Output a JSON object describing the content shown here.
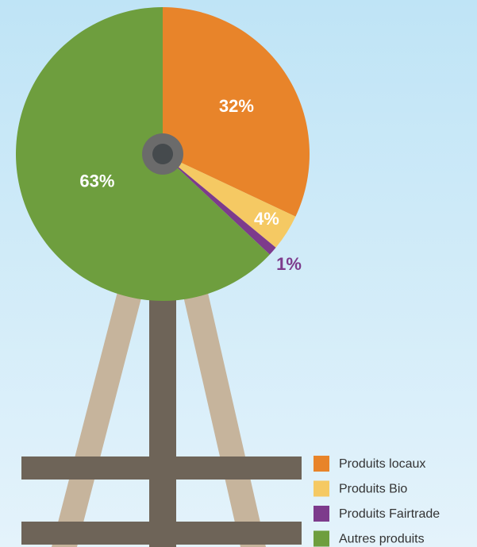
{
  "chart_data": {
    "type": "pie",
    "categories": [
      "Produits locaux",
      "Produits Bio",
      "Produits Fairtrade",
      "Autres produits"
    ],
    "values": [
      32,
      4,
      1,
      63
    ],
    "value_labels": [
      "32%",
      "4%",
      "1%",
      "63%"
    ],
    "colors": [
      "#e8842a",
      "#f5c963",
      "#7d3b8c",
      "#6e9e3e"
    ]
  }
}
